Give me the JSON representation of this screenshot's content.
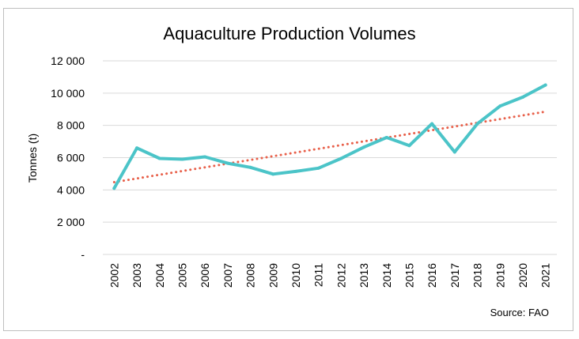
{
  "chart_data": {
    "type": "line",
    "title": "Aquaculture Production Volumes",
    "ylabel": "Tonnes (t)",
    "xlabel": "",
    "source": "Source: FAO",
    "x": [
      "2002",
      "2003",
      "2004",
      "2005",
      "2006",
      "2007",
      "2008",
      "2009",
      "2010",
      "2011",
      "2012",
      "2013",
      "2014",
      "2015",
      "2016",
      "2017",
      "2018",
      "2019",
      "2020",
      "2021"
    ],
    "series": [
      {
        "values": [
          4100,
          6600,
          5950,
          5900,
          6050,
          5650,
          5400,
          4980,
          5150,
          5350,
          5950,
          6650,
          7250,
          6750,
          8100,
          6350,
          8100,
          9200,
          9750,
          10500
        ],
        "color": "#4bc4c8"
      }
    ],
    "trendline": {
      "start": 4480,
      "end": 8850,
      "color": "#e8604a",
      "style": "dotted"
    },
    "ylim": [
      0,
      12000
    ],
    "yticks": [
      {
        "value": 0,
        "label": "-"
      },
      {
        "value": 2000,
        "label": "2 000"
      },
      {
        "value": 4000,
        "label": "4 000"
      },
      {
        "value": 6000,
        "label": "6 000"
      },
      {
        "value": 8000,
        "label": "8 000"
      },
      {
        "value": 10000,
        "label": "10 000"
      },
      {
        "value": 12000,
        "label": "12 000"
      }
    ],
    "grid": true,
    "legend": "none"
  }
}
